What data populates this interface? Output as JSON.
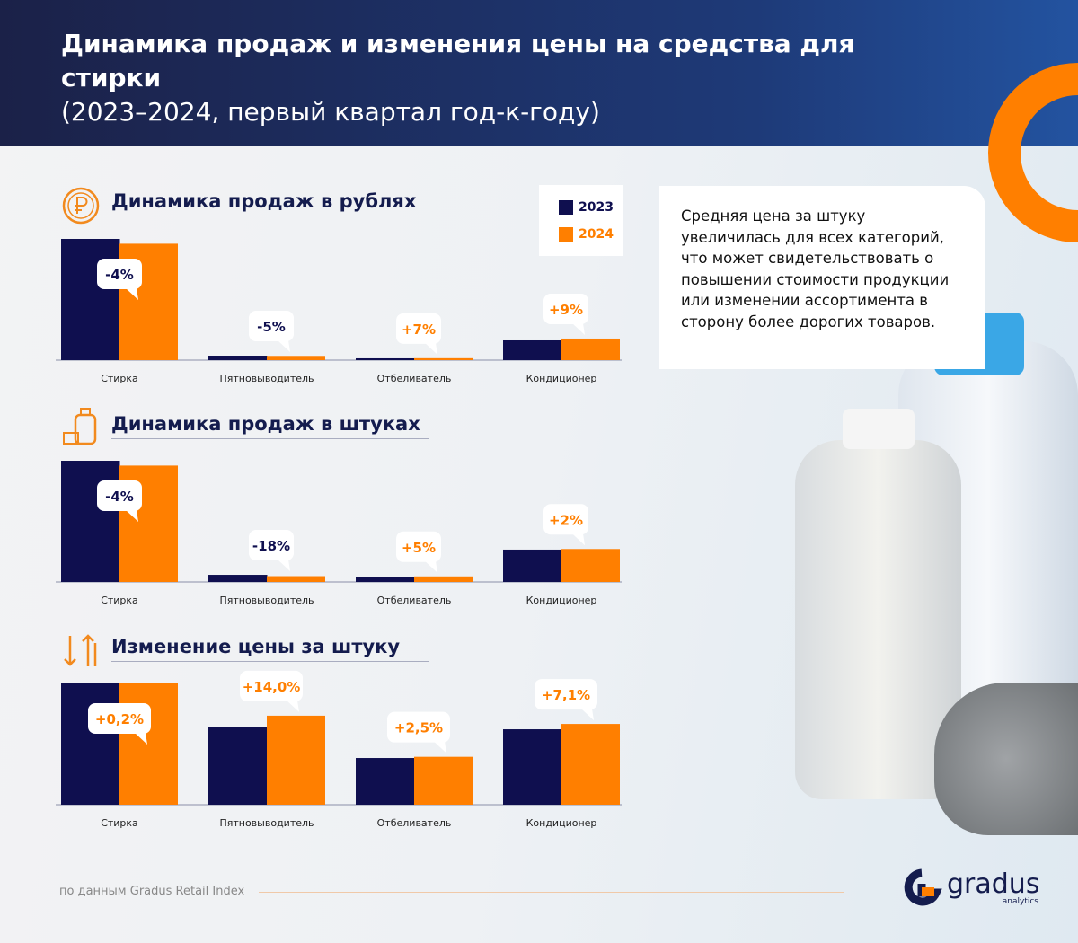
{
  "header": {
    "title_bold": "Динамика продаж и изменения цены на средства для стирки",
    "title_light": "(2023–2024, первый квартал год-к-году)"
  },
  "legend": [
    {
      "label": "2023",
      "color": "#0f0f4f"
    },
    {
      "label": "2024",
      "color": "#ff7f00"
    }
  ],
  "note": "Средняя цена за штуку увеличилась для всех категорий, что может свидетельствовать о повышении стоимости продукции или изменении ассортимента в сторону более дорогих товаров.",
  "footer": {
    "source": "по данным Gradus Retail Index",
    "logo": "gradus",
    "logo_sub": "analytics"
  },
  "icons": [
    "ruble-coin-icon",
    "detergent-bottle-icon",
    "price-arrows-icon"
  ],
  "chart_data": [
    {
      "type": "bar",
      "title": "Динамика продаж в рублях",
      "categories": [
        "Стирка",
        "Пятновыводитель",
        "Отбеливатель",
        "Кондиционер"
      ],
      "series": [
        {
          "name": "2023",
          "values": [
            100,
            3.7,
            1.5,
            16.3
          ]
        },
        {
          "name": "2024",
          "values": [
            96,
            3.5,
            1.6,
            17.8
          ]
        }
      ],
      "labels": [
        "-4%",
        "-5%",
        "+7%",
        "+9%"
      ]
    },
    {
      "type": "bar",
      "title": "Динамика продаж в штуках",
      "categories": [
        "Стирка",
        "Пятновыводитель",
        "Отбеливатель",
        "Кондиционер"
      ],
      "series": [
        {
          "name": "2023",
          "values": [
            100,
            5.9,
            4.4,
            26.7
          ]
        },
        {
          "name": "2024",
          "values": [
            96,
            4.8,
            4.6,
            27.2
          ]
        }
      ],
      "labels": [
        "-4%",
        "-18%",
        "+5%",
        "+2%"
      ]
    },
    {
      "type": "bar",
      "title": "Изменение цены за штуку",
      "categories": [
        "Стирка",
        "Пятновыводитель",
        "Отбеливатель",
        "Кондиционер"
      ],
      "series": [
        {
          "name": "2023",
          "values": [
            100,
            64.4,
            38.5,
            62.2
          ]
        },
        {
          "name": "2024",
          "values": [
            100.2,
            73.4,
            39.5,
            66.6
          ]
        }
      ],
      "labels": [
        "+0,2%",
        "+14,0%",
        "+2,5%",
        "+7,1%"
      ]
    }
  ],
  "colors": {
    "navy": "#0f0f4f",
    "orange": "#ff7f00",
    "header": "#1b2148"
  }
}
